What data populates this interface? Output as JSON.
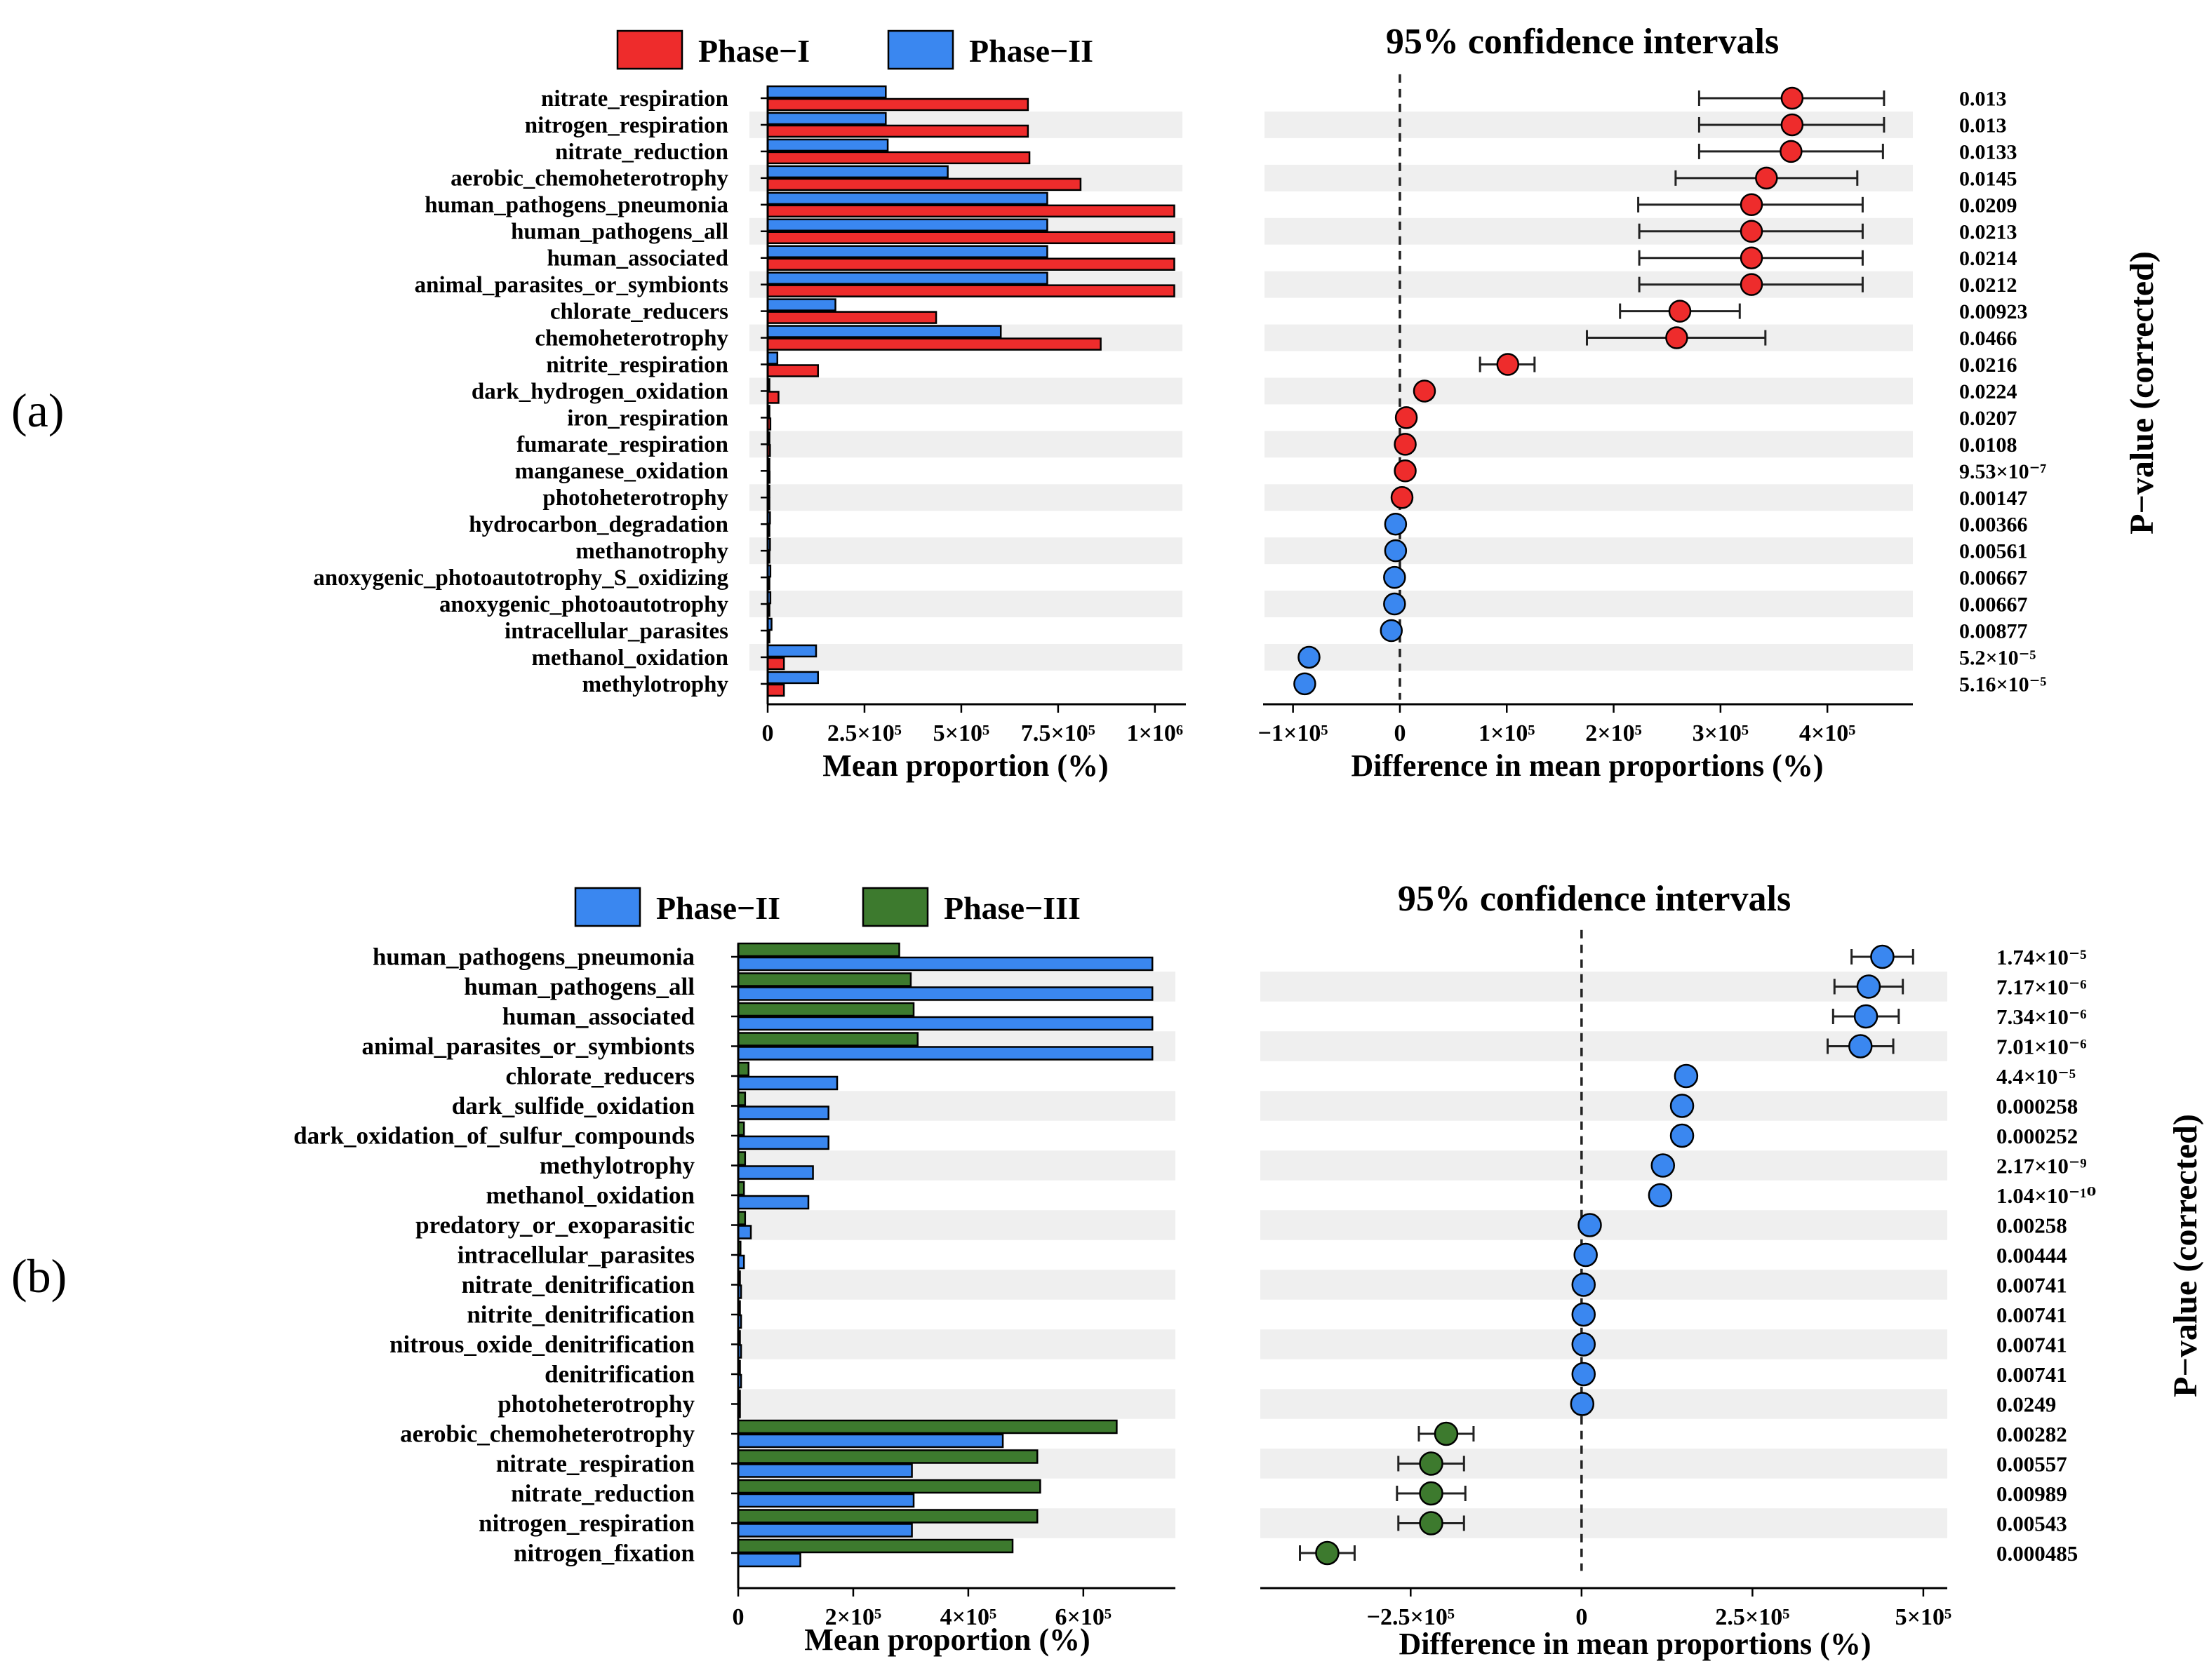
{
  "panels": [
    {
      "label": "(a)",
      "ci_title": "95% confidence intervals",
      "pvalue_label": "P−value (corrected)",
      "bar_xlabel": "Mean proportion (%)",
      "diff_xlabel": "Difference in mean proportions (%)",
      "legend": [
        {
          "name": "Phase−I",
          "color": "#ee2c2c"
        },
        {
          "name": "Phase−II",
          "color": "#3a87f0"
        }
      ],
      "bar_ticks": [
        {
          "value": 0,
          "label": "0"
        },
        {
          "value": 250000,
          "label": "2.5×10⁵"
        },
        {
          "value": 500000,
          "label": "5×10⁵"
        },
        {
          "value": 750000,
          "label": "7.5×10⁵"
        },
        {
          "value": 1000000,
          "label": "1×10⁶"
        }
      ],
      "diff_ticks": [
        {
          "value": -100000,
          "label": "−1×10⁵"
        },
        {
          "value": 0,
          "label": "0"
        },
        {
          "value": 100000,
          "label": "1×10⁵"
        },
        {
          "value": 200000,
          "label": "2×10⁵"
        },
        {
          "value": 300000,
          "label": "3×10⁵"
        },
        {
          "value": 400000,
          "label": "4×10⁵"
        }
      ],
      "rows": [
        {
          "name": "nitrate_respiration",
          "s1": 672000,
          "s2": 305000,
          "diff": 367000,
          "lo": 280000,
          "hi": 453000,
          "dot": "#ee2c2c",
          "p": "0.013"
        },
        {
          "name": "nitrogen_respiration",
          "s1": 672000,
          "s2": 305000,
          "diff": 367000,
          "lo": 280000,
          "hi": 453000,
          "dot": "#ee2c2c",
          "p": "0.013"
        },
        {
          "name": "nitrate_reduction",
          "s1": 676000,
          "s2": 310000,
          "diff": 366000,
          "lo": 280000,
          "hi": 452000,
          "dot": "#ee2c2c",
          "p": "0.0133"
        },
        {
          "name": "aerobic_chemoheterotrophy",
          "s1": 808000,
          "s2": 465000,
          "diff": 343000,
          "lo": 258000,
          "hi": 428000,
          "dot": "#ee2c2c",
          "p": "0.0145"
        },
        {
          "name": "human_pathogens_pneumonia",
          "s1": 1050000,
          "s2": 722000,
          "diff": 329000,
          "lo": 223000,
          "hi": 433000,
          "dot": "#ee2c2c",
          "p": "0.0209"
        },
        {
          "name": "human_pathogens_all",
          "s1": 1050000,
          "s2": 722000,
          "diff": 329000,
          "lo": 224000,
          "hi": 433000,
          "dot": "#ee2c2c",
          "p": "0.0213"
        },
        {
          "name": "human_associated",
          "s1": 1050000,
          "s2": 722000,
          "diff": 329000,
          "lo": 224000,
          "hi": 433000,
          "dot": "#ee2c2c",
          "p": "0.0214"
        },
        {
          "name": "animal_parasites_or_symbionts",
          "s1": 1050000,
          "s2": 722000,
          "diff": 329000,
          "lo": 224000,
          "hi": 433000,
          "dot": "#ee2c2c",
          "p": "0.0212"
        },
        {
          "name": "chlorate_reducers",
          "s1": 435000,
          "s2": 175000,
          "diff": 262000,
          "lo": 206000,
          "hi": 318000,
          "dot": "#ee2c2c",
          "p": "0.00923"
        },
        {
          "name": "chemoheterotrophy",
          "s1": 860000,
          "s2": 602000,
          "diff": 259000,
          "lo": 175000,
          "hi": 342000,
          "dot": "#ee2c2c",
          "p": "0.0466"
        },
        {
          "name": "nitrite_respiration",
          "s1": 130000,
          "s2": 25000,
          "diff": 101000,
          "lo": 75000,
          "hi": 126000,
          "dot": "#ee2c2c",
          "p": "0.0216"
        },
        {
          "name": "dark_hydrogen_oxidation",
          "s1": 28000,
          "s2": 4000,
          "diff": 23000,
          "lo": 20000,
          "hi": 26000,
          "dot": "#ee2c2c",
          "p": "0.0224"
        },
        {
          "name": "iron_respiration",
          "s1": 7000,
          "s2": 2000,
          "diff": 6000,
          "lo": 4000,
          "hi": 8000,
          "dot": "#ee2c2c",
          "p": "0.0207"
        },
        {
          "name": "fumarate_respiration",
          "s1": 6000,
          "s2": 2000,
          "diff": 5000,
          "lo": 3000,
          "hi": 7000,
          "dot": "#ee2c2c",
          "p": "0.0108"
        },
        {
          "name": "manganese_oxidation",
          "s1": 5000,
          "s2": 1000,
          "diff": 5000,
          "lo": 4000,
          "hi": 6000,
          "dot": "#ee2c2c",
          "p": "9.53×10⁻⁷"
        },
        {
          "name": "photoheterotrophy",
          "s1": 4000,
          "s2": 2000,
          "diff": 2000,
          "lo": 1000,
          "hi": 3000,
          "dot": "#ee2c2c",
          "p": "0.00147"
        },
        {
          "name": "hydrocarbon_degradation",
          "s1": 2000,
          "s2": 6000,
          "diff": -4000,
          "lo": -5000,
          "hi": -3000,
          "dot": "#3a87f0",
          "p": "0.00366"
        },
        {
          "name": "methanotrophy",
          "s1": 2000,
          "s2": 6000,
          "diff": -4000,
          "lo": -5000,
          "hi": -3000,
          "dot": "#3a87f0",
          "p": "0.00561"
        },
        {
          "name": "anoxygenic_photoautotrophy_S_oxidizing",
          "s1": 2000,
          "s2": 7000,
          "diff": -5000,
          "lo": -6000,
          "hi": -4000,
          "dot": "#3a87f0",
          "p": "0.00667"
        },
        {
          "name": "anoxygenic_photoautotrophy",
          "s1": 2000,
          "s2": 7000,
          "diff": -5000,
          "lo": -6000,
          "hi": -4000,
          "dot": "#3a87f0",
          "p": "0.00667"
        },
        {
          "name": "intracellular_parasites",
          "s1": 2000,
          "s2": 10000,
          "diff": -8000,
          "lo": -9000,
          "hi": -7000,
          "dot": "#3a87f0",
          "p": "0.00877"
        },
        {
          "name": "methanol_oxidation",
          "s1": 42000,
          "s2": 125000,
          "diff": -85000,
          "lo": -90000,
          "hi": -80000,
          "dot": "#3a87f0",
          "p": "5.2×10⁻⁵"
        },
        {
          "name": "methylotrophy",
          "s1": 42000,
          "s2": 130000,
          "diff": -89000,
          "lo": -94000,
          "hi": -84000,
          "dot": "#3a87f0",
          "p": "5.16×10⁻⁵"
        }
      ]
    },
    {
      "label": "(b)",
      "ci_title": "95% confidence intervals",
      "pvalue_label": "P−value (corrected)",
      "bar_xlabel": "Mean proportion (%)",
      "diff_xlabel": "Difference in mean proportions (%)",
      "legend": [
        {
          "name": "Phase−II",
          "color": "#3a87f0"
        },
        {
          "name": "Phase−III",
          "color": "#3d7a2e"
        }
      ],
      "bar_ticks": [
        {
          "value": 0,
          "label": "0"
        },
        {
          "value": 200000,
          "label": "2×10⁵"
        },
        {
          "value": 400000,
          "label": "4×10⁵"
        },
        {
          "value": 600000,
          "label": "6×10⁵"
        }
      ],
      "diff_ticks": [
        {
          "value": -250000,
          "label": "−2.5×10⁵"
        },
        {
          "value": 0,
          "label": "0"
        },
        {
          "value": 250000,
          "label": "2.5×10⁵"
        },
        {
          "value": 500000,
          "label": "5×10⁵"
        }
      ],
      "rows": [
        {
          "name": "human_pathogens_pneumonia",
          "s1": 720000,
          "s2": 280000,
          "diff": 440000,
          "lo": 395000,
          "hi": 485000,
          "dot": "#3a87f0",
          "p": "1.74×10⁻⁵"
        },
        {
          "name": "human_pathogens_all",
          "s1": 720000,
          "s2": 300000,
          "diff": 420000,
          "lo": 370000,
          "hi": 470000,
          "dot": "#3a87f0",
          "p": "7.17×10⁻⁶"
        },
        {
          "name": "human_associated",
          "s1": 720000,
          "s2": 305000,
          "diff": 416000,
          "lo": 368000,
          "hi": 464000,
          "dot": "#3a87f0",
          "p": "7.34×10⁻⁶"
        },
        {
          "name": "animal_parasites_or_symbionts",
          "s1": 720000,
          "s2": 312000,
          "diff": 408000,
          "lo": 360000,
          "hi": 456000,
          "dot": "#3a87f0",
          "p": "7.01×10⁻⁶"
        },
        {
          "name": "chlorate_reducers",
          "s1": 172000,
          "s2": 18000,
          "diff": 153000,
          "lo": 150000,
          "hi": 156000,
          "dot": "#3a87f0",
          "p": "4.4×10⁻⁵"
        },
        {
          "name": "dark_sulfide_oxidation",
          "s1": 157000,
          "s2": 12000,
          "diff": 147000,
          "lo": 144000,
          "hi": 150000,
          "dot": "#3a87f0",
          "p": "0.000258"
        },
        {
          "name": "dark_oxidation_of_sulfur_compounds",
          "s1": 157000,
          "s2": 10000,
          "diff": 147000,
          "lo": 144000,
          "hi": 150000,
          "dot": "#3a87f0",
          "p": "0.000252"
        },
        {
          "name": "methylotrophy",
          "s1": 130000,
          "s2": 12000,
          "diff": 119000,
          "lo": 116000,
          "hi": 122000,
          "dot": "#3a87f0",
          "p": "2.17×10⁻⁹"
        },
        {
          "name": "methanol_oxidation",
          "s1": 122000,
          "s2": 10000,
          "diff": 115000,
          "lo": 112000,
          "hi": 118000,
          "dot": "#3a87f0",
          "p": "1.04×10⁻¹⁰"
        },
        {
          "name": "predatory_or_exoparasitic",
          "s1": 22000,
          "s2": 12000,
          "diff": 12000,
          "lo": 10000,
          "hi": 14000,
          "dot": "#3a87f0",
          "p": "0.00258"
        },
        {
          "name": "intracellular_parasites",
          "s1": 10000,
          "s2": 4000,
          "diff": 6000,
          "lo": 5000,
          "hi": 7000,
          "dot": "#3a87f0",
          "p": "0.00444"
        },
        {
          "name": "nitrate_denitrification",
          "s1": 5000,
          "s2": 2000,
          "diff": 3000,
          "lo": 2000,
          "hi": 4000,
          "dot": "#3a87f0",
          "p": "0.00741"
        },
        {
          "name": "nitrite_denitrification",
          "s1": 5000,
          "s2": 2000,
          "diff": 3000,
          "lo": 2000,
          "hi": 4000,
          "dot": "#3a87f0",
          "p": "0.00741"
        },
        {
          "name": "nitrous_oxide_denitrification",
          "s1": 5000,
          "s2": 2000,
          "diff": 3000,
          "lo": 2000,
          "hi": 4000,
          "dot": "#3a87f0",
          "p": "0.00741"
        },
        {
          "name": "denitrification",
          "s1": 5000,
          "s2": 2000,
          "diff": 3000,
          "lo": 2000,
          "hi": 4000,
          "dot": "#3a87f0",
          "p": "0.00741"
        },
        {
          "name": "photoheterotrophy",
          "s1": 3000,
          "s2": 1000,
          "diff": 1000,
          "lo": 0,
          "hi": 2000,
          "dot": "#3a87f0",
          "p": "0.0249"
        },
        {
          "name": "aerobic_chemoheterotrophy",
          "s1": 460000,
          "s2": 658000,
          "diff": -198000,
          "lo": -238000,
          "hi": -158000,
          "dot": "#3d7a2e",
          "p": "0.00282"
        },
        {
          "name": "nitrate_respiration",
          "s1": 302000,
          "s2": 520000,
          "diff": -220000,
          "lo": -268000,
          "hi": -172000,
          "dot": "#3d7a2e",
          "p": "0.00557"
        },
        {
          "name": "nitrate_reduction",
          "s1": 305000,
          "s2": 525000,
          "diff": -220000,
          "lo": -270000,
          "hi": -170000,
          "dot": "#3d7a2e",
          "p": "0.00989"
        },
        {
          "name": "nitrogen_respiration",
          "s1": 302000,
          "s2": 520000,
          "diff": -220000,
          "lo": -268000,
          "hi": -172000,
          "dot": "#3d7a2e",
          "p": "0.00543"
        },
        {
          "name": "nitrogen_fixation",
          "s1": 108000,
          "s2": 477000,
          "diff": -372000,
          "lo": -412000,
          "hi": -332000,
          "dot": "#3d7a2e",
          "p": "0.000485"
        }
      ]
    }
  ],
  "chart_data": [
    {
      "type": "bar",
      "title": "95% confidence intervals",
      "xlabel": "Mean proportion (%)",
      "diff_xlabel": "Difference in mean proportions (%)",
      "ylabel": "P−value (corrected)",
      "series": [
        {
          "name": "Phase−I"
        },
        {
          "name": "Phase−II"
        }
      ],
      "xlim": [
        0,
        1080000
      ],
      "diff_xlim": [
        -128000,
        480000
      ]
    },
    {
      "type": "bar",
      "title": "95% confidence intervals",
      "xlabel": "Mean proportion (%)",
      "diff_xlabel": "Difference in mean proportions (%)",
      "ylabel": "P−value (corrected)",
      "series": [
        {
          "name": "Phase−II"
        },
        {
          "name": "Phase−III"
        }
      ],
      "xlim": [
        0,
        760000
      ],
      "diff_xlim": [
        -470000,
        535000
      ]
    }
  ]
}
